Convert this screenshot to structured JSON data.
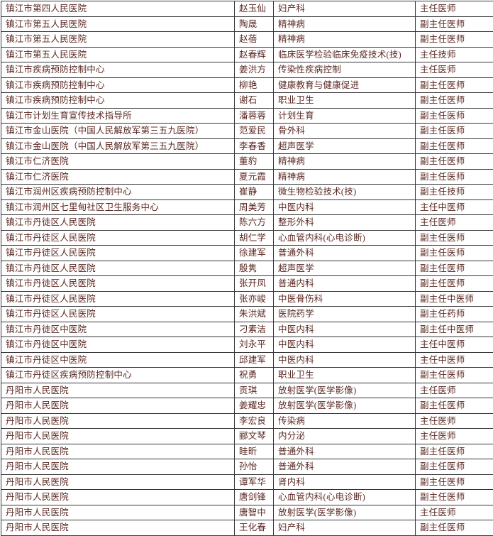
{
  "table": {
    "columns": [
      "institution",
      "person_name",
      "specialty",
      "title"
    ],
    "rows": [
      [
        "镇江市第四人民医院",
        "赵玉仙",
        "妇产科",
        "主任医师"
      ],
      [
        "镇江市第五人民医院",
        "陶晟",
        "精神病",
        "副主任医师"
      ],
      [
        "镇江市第五人民医院",
        "赵蓓",
        "精神病",
        "副主任医师"
      ],
      [
        "镇江市第五人民医院",
        "赵春辉",
        "临床医学检验临床免疫技术(技)",
        "主任技师"
      ],
      [
        "镇江市疾病预防控制中心",
        "姜洪方",
        "传染性疾病控制",
        "主任医师"
      ],
      [
        "镇江市疾病预防控制中心",
        "柳艳",
        "健康教育与健康促进",
        "副主任医师"
      ],
      [
        "镇江市疾病预防控制中心",
        "谢石",
        "职业卫生",
        "副主任医师"
      ],
      [
        "镇江市计划生育宣传技术指导所",
        "潘蓉蓉",
        "计划生育",
        "副主任医师"
      ],
      [
        "镇江市金山医院（中国人民解放军第三五九医院）",
        "范爱民",
        "骨外科",
        "副主任医师"
      ],
      [
        "镇江市金山医院（中国人民解放军第三五九医院）",
        "李春香",
        "超声医学",
        "副主任医师"
      ],
      [
        "镇江市仁济医院",
        "董豹",
        "精神病",
        "副主任医师"
      ],
      [
        "镇江市仁济医院",
        "夏元霞",
        "精神病",
        "副主任医师"
      ],
      [
        "镇江市润州区疾病预防控制中心",
        "崔静",
        "微生物检验技术(技)",
        "副主任技师"
      ],
      [
        "镇江市润州区七里甸社区卫生服务中心",
        "周美芳",
        "中医内科",
        "主任中医师"
      ],
      [
        "镇江市丹徒区人民医院",
        "陈六方",
        "整形外科",
        "主任医师"
      ],
      [
        "镇江市丹徒区人民医院",
        "胡仁学",
        "心血管内科(心电诊断)",
        "副主任医师"
      ],
      [
        "镇江市丹徒区人民医院",
        "徐建军",
        "普通外科",
        "副主任医师"
      ],
      [
        "镇江市丹徒区人民医院",
        "殷隽",
        "超声医学",
        "副主任医师"
      ],
      [
        "镇江市丹徒区人民医院",
        "张开凤",
        "普通内科",
        "副主任医师"
      ],
      [
        "镇江市丹徒区人民医院",
        "张亦峻",
        "中医骨伤科",
        "副主任中医师"
      ],
      [
        "镇江市丹徒区人民医院",
        "朱洪斌",
        "医院药学",
        "副主任药师"
      ],
      [
        "镇江市丹徒区中医院",
        "刁素洁",
        "中医内科",
        "副主任中医师"
      ],
      [
        "镇江市丹徒区中医院",
        "刘永平",
        "中医内科",
        "主任中医师"
      ],
      [
        "镇江市丹徒区中医院",
        "邱建军",
        "中医内科",
        "主任中医师"
      ],
      [
        "镇江市丹徒区疾病预防控制中心",
        "祝勇",
        "职业卫生",
        "副主任医师"
      ],
      [
        "丹阳市人民医院",
        "贡琪",
        "放射医学(医学影像)",
        "主任医师"
      ],
      [
        "丹阳市人民医院",
        "姜耀忠",
        "放射医学(医学影像)",
        "副主任医师"
      ],
      [
        "丹阳市人民医院",
        "李宏良",
        "传染病",
        "主任医师"
      ],
      [
        "丹阳市人民医院",
        "郦文琴",
        "内分泌",
        "主任医师"
      ],
      [
        "丹阳市人民医院",
        "眭昕",
        "普通外科",
        "副主任医师"
      ],
      [
        "丹阳市人民医院",
        "孙怡",
        "普通外科",
        "副主任医师"
      ],
      [
        "丹阳市人民医院",
        "谭军华",
        "肾内科",
        "副主任医师"
      ],
      [
        "丹阳市人民医院",
        "唐剑锋",
        "心血管内科(心电诊断)",
        "副主任医师"
      ],
      [
        "丹阳市人民医院",
        "唐智中",
        "放射医学(医学影像)",
        "主任医师"
      ],
      [
        "丹阳市人民医院",
        "王化春",
        "妇产科",
        "副主任医师"
      ]
    ]
  },
  "colors": {
    "text": "#5a2822",
    "border": "#363636",
    "background": "#ffffff"
  }
}
